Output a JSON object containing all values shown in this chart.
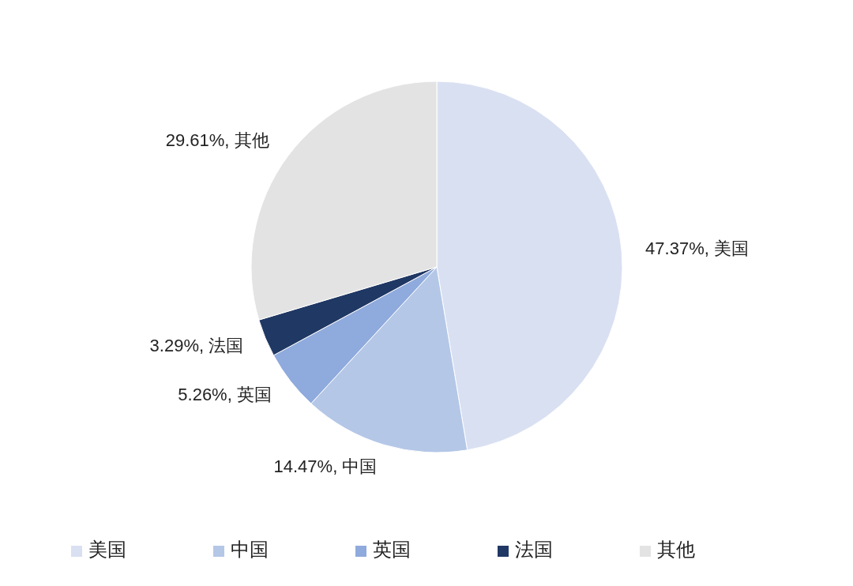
{
  "chart_data": {
    "type": "pie",
    "categories": [
      "美国",
      "中国",
      "英国",
      "法国",
      "其他"
    ],
    "values": [
      47.37,
      14.47,
      5.26,
      3.29,
      29.61
    ],
    "colors": [
      "#d9e0f2",
      "#b4c7e7",
      "#8faadc",
      "#203864",
      "#e3e3e3"
    ],
    "value_labels": [
      "47.37%, 美国",
      "14.47%, 中国",
      "5.26%, 英国",
      "3.29%, 法国",
      "29.61%, 其他"
    ],
    "legend": "bottom"
  }
}
